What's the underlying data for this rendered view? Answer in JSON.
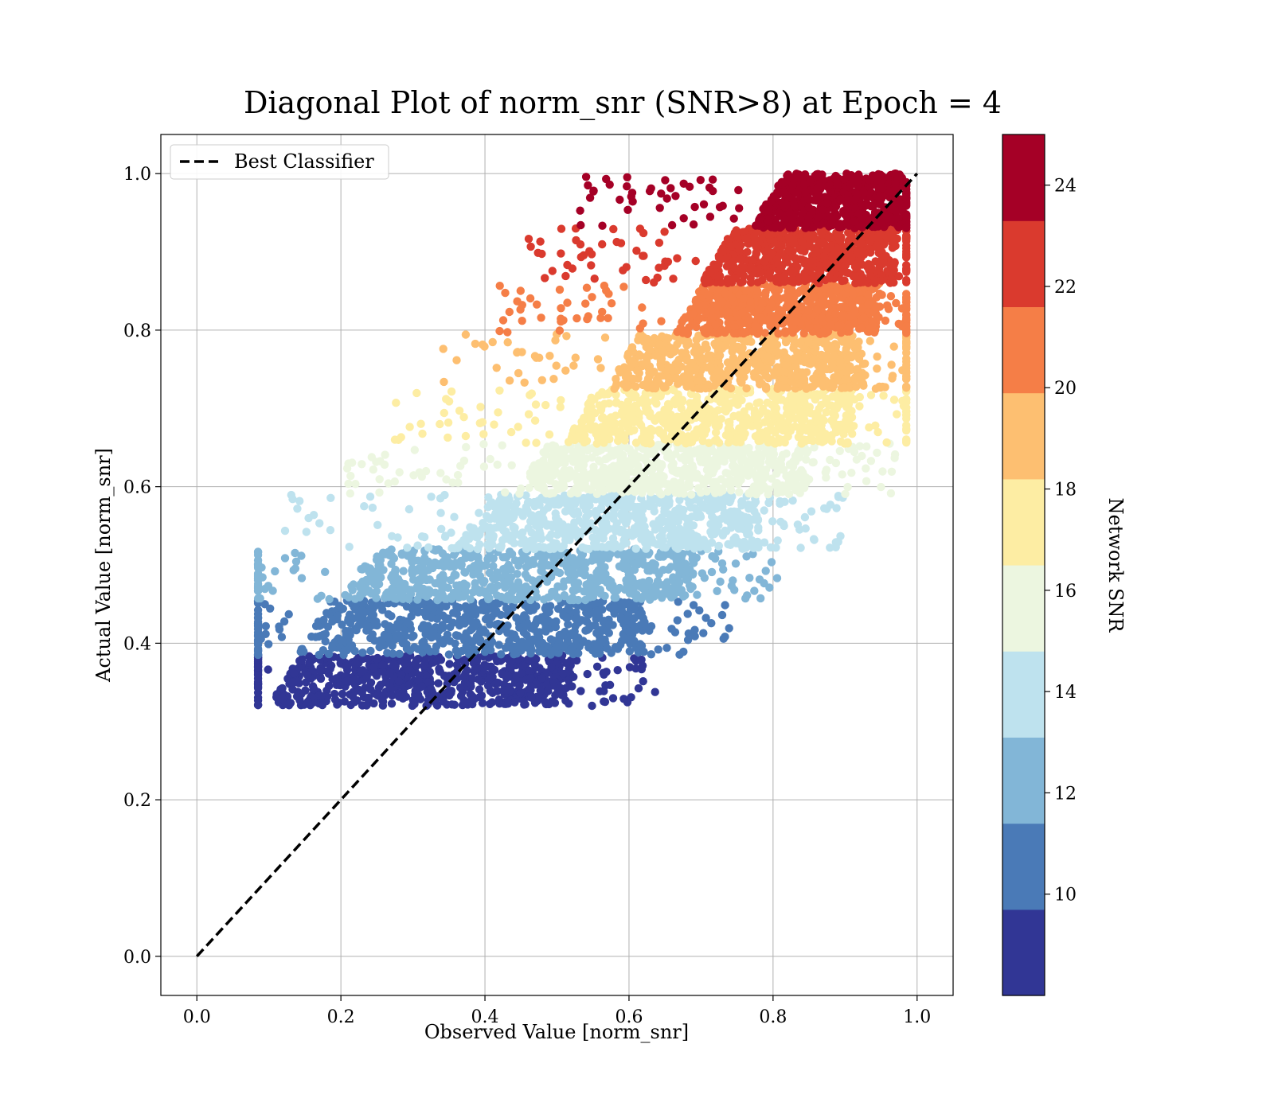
{
  "chart_data": {
    "type": "scatter",
    "title": "Diagonal Plot of norm_snr (SNR>8) at Epoch = 4",
    "xlabel": "Observed Value [norm_snr]",
    "ylabel": "Actual Value [norm_snr]",
    "xlim": [
      -0.05,
      1.05
    ],
    "ylim": [
      -0.05,
      1.05
    ],
    "xticks": [
      "0.0",
      "0.2",
      "0.4",
      "0.6",
      "0.8",
      "1.0"
    ],
    "yticks": [
      "0.0",
      "0.2",
      "0.4",
      "0.6",
      "0.8",
      "1.0"
    ],
    "grid": true,
    "legend": {
      "placement": "top-left",
      "entries": [
        "Best Classifier"
      ]
    },
    "reference_line": {
      "name": "Best Classifier",
      "style": "dashed",
      "color": "#000000",
      "x": [
        0.0,
        1.0
      ],
      "y": [
        0.0,
        1.0
      ]
    },
    "colorbar": {
      "label": "Network SNR",
      "range": [
        8,
        25
      ],
      "ticks": [
        "10",
        "12",
        "14",
        "16",
        "18",
        "20",
        "22",
        "24"
      ],
      "colors": [
        "#313695",
        "#4a7ab7",
        "#82b6d7",
        "#bee2ee",
        "#ecf6e0",
        "#fdeda3",
        "#fdbf71",
        "#f57e47",
        "#da3a2e",
        "#a50026"
      ]
    },
    "point_bands": [
      {
        "snr_range": [
          8.0,
          9.7
        ],
        "y_range": [
          0.32,
          0.385
        ],
        "x_core": [
          0.1,
          0.52
        ],
        "color": "#313695"
      },
      {
        "snr_range": [
          9.7,
          11.4
        ],
        "y_range": [
          0.385,
          0.455
        ],
        "x_core": [
          0.14,
          0.62
        ],
        "color": "#4a7ab7"
      },
      {
        "snr_range": [
          11.4,
          13.1
        ],
        "y_range": [
          0.455,
          0.52
        ],
        "x_core": [
          0.2,
          0.69
        ],
        "color": "#82b6d7"
      },
      {
        "snr_range": [
          13.1,
          14.8
        ],
        "y_range": [
          0.52,
          0.59
        ],
        "x_core": [
          0.36,
          0.78
        ],
        "color": "#bee2ee"
      },
      {
        "snr_range": [
          14.8,
          16.5
        ],
        "y_range": [
          0.59,
          0.655
        ],
        "x_core": [
          0.44,
          0.85
        ],
        "color": "#ecf6e0"
      },
      {
        "snr_range": [
          16.5,
          18.2
        ],
        "y_range": [
          0.655,
          0.725
        ],
        "x_core": [
          0.51,
          0.91
        ],
        "color": "#fdeda3"
      },
      {
        "snr_range": [
          18.2,
          19.9
        ],
        "y_range": [
          0.725,
          0.795
        ],
        "x_core": [
          0.57,
          0.93
        ],
        "color": "#fdbf71"
      },
      {
        "snr_range": [
          19.9,
          21.6
        ],
        "y_range": [
          0.795,
          0.86
        ],
        "x_core": [
          0.66,
          0.95
        ],
        "color": "#f57e47"
      },
      {
        "snr_range": [
          21.6,
          23.3
        ],
        "y_range": [
          0.86,
          0.93
        ],
        "x_core": [
          0.7,
          0.97
        ],
        "color": "#da3a2e"
      },
      {
        "snr_range": [
          23.3,
          25.0
        ],
        "y_range": [
          0.93,
          1.0
        ],
        "x_core": [
          0.77,
          0.98
        ],
        "color": "#a50026"
      }
    ]
  }
}
